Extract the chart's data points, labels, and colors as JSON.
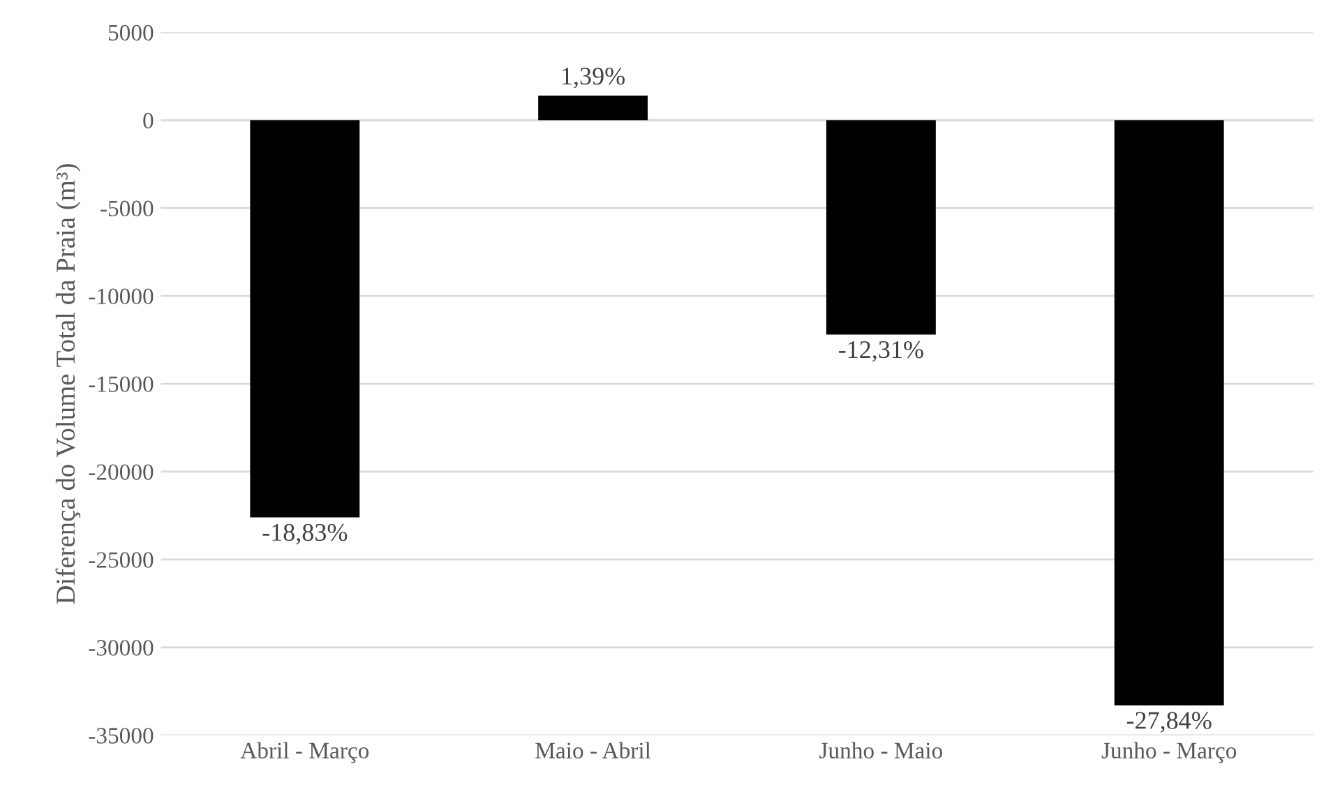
{
  "chart_data": {
    "type": "bar",
    "ylabel": "Diferença do Volume Total da Praia (m³)",
    "categories": [
      "Abril - Março",
      "Maio - Abril",
      "Junho - Maio",
      "Junho - Março"
    ],
    "values": [
      -22600,
      1400,
      -12200,
      -33300
    ],
    "annotations": [
      {
        "text": "-18,83%",
        "x": "Abril - Março",
        "y": -22600
      },
      {
        "text": "1,39%",
        "x": "Maio - Abril",
        "y": 1400
      },
      {
        "text": "-12,31%",
        "x": "Junho - Maio",
        "y": -12200
      },
      {
        "text": "-27,84%",
        "x": "Junho - Março",
        "y": -33300
      }
    ],
    "color": "#000000",
    "ylim": [
      -35000,
      5000
    ],
    "yticks": [
      -35000,
      -30000,
      -25000,
      -20000,
      -15000,
      -10000,
      -5000,
      0,
      5000
    ],
    "grid": "y"
  }
}
